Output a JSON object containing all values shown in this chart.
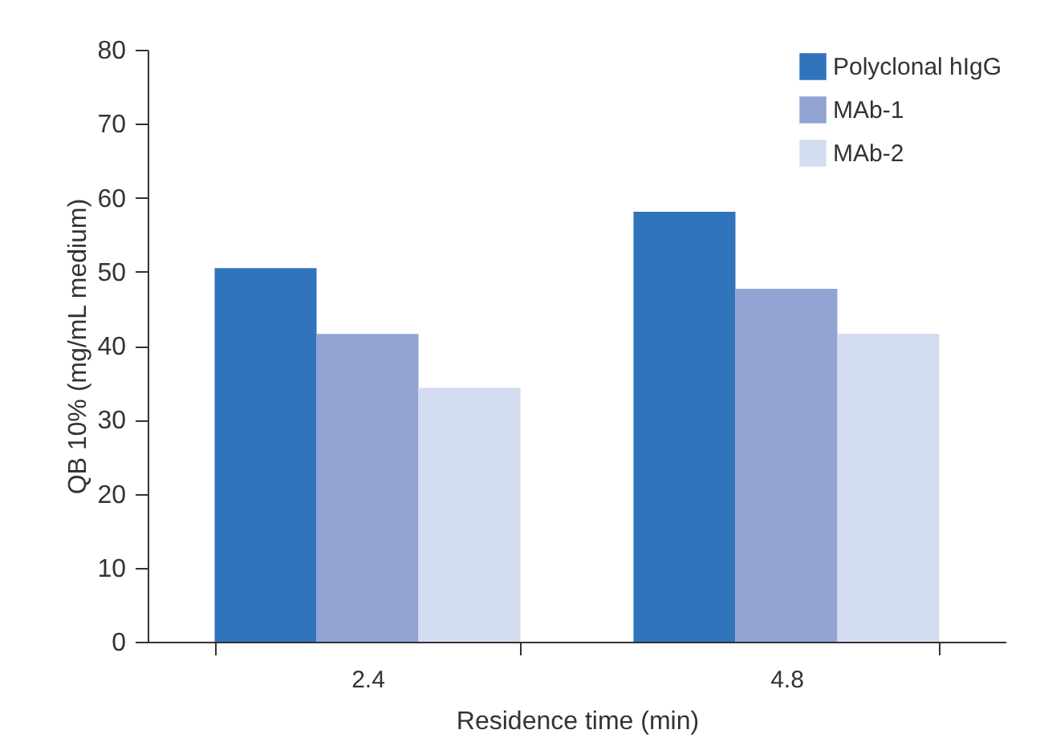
{
  "chart_data": {
    "type": "bar",
    "xlabel": "Residence time (min)",
    "ylabel": "QB 10% (mg/mL medium)",
    "categories": [
      "2.4",
      "4.8"
    ],
    "series": [
      {
        "name": "Polyclonal hIgG",
        "color": "#3074bb",
        "values": [
          50.5,
          58.1
        ]
      },
      {
        "name": "MAb-1",
        "color": "#91a4d3",
        "values": [
          41.6,
          47.7
        ]
      },
      {
        "name": "MAb-2",
        "color": "#d4dcef",
        "values": [
          34.3,
          41.6
        ]
      }
    ],
    "ylim": [
      0,
      80
    ],
    "yticks": [
      0,
      10,
      20,
      30,
      40,
      50,
      60,
      70,
      80
    ],
    "grid": false,
    "legend": "top right"
  }
}
